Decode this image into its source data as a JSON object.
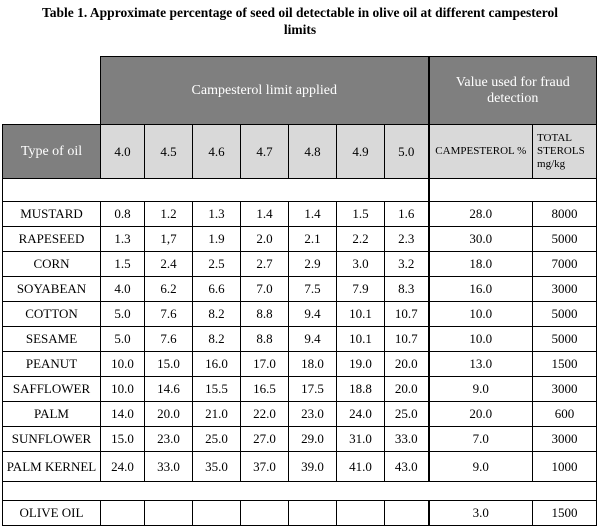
{
  "title_line1": "Table 1. Approximate percentage of seed oil detectable in olive oil at different campesterol",
  "title_line2": "limits",
  "headers": {
    "campesterol_limit_applied": "Campesterol limit applied",
    "value_used_for_fraud_detection": "Value used for fraud detection",
    "type_of_oil": "Type of oil",
    "limits": [
      "4.0",
      "4.5",
      "4.6",
      "4.7",
      "4.8",
      "4.9",
      "5.0"
    ],
    "campesterol_pct": "CAMPESTEROL %",
    "total_sterols": "TOTAL STEROLS mg/kg"
  },
  "rows": [
    {
      "name": "MUSTARD",
      "values": [
        "0.8",
        "1.2",
        "1.3",
        "1.4",
        "1.4",
        "1.5",
        "1.6"
      ],
      "campesterol": "28.0",
      "total": "8000"
    },
    {
      "name": "RAPESEED",
      "values": [
        "1.3",
        "1,7",
        "1.9",
        "2.0",
        "2.1",
        "2.2",
        "2.3"
      ],
      "campesterol": "30.0",
      "total": "5000"
    },
    {
      "name": "CORN",
      "values": [
        "1.5",
        "2.4",
        "2.5",
        "2.7",
        "2.9",
        "3.0",
        "3.2"
      ],
      "campesterol": "18.0",
      "total": "7000"
    },
    {
      "name": "SOYABEAN",
      "values": [
        "4.0",
        "6.2",
        "6.6",
        "7.0",
        "7.5",
        "7.9",
        "8.3"
      ],
      "campesterol": "16.0",
      "total": "3000"
    },
    {
      "name": "COTTON",
      "values": [
        "5.0",
        "7.6",
        "8.2",
        "8.8",
        "9.4",
        "10.1",
        "10.7"
      ],
      "campesterol": "10.0",
      "total": "5000"
    },
    {
      "name": "SESAME",
      "values": [
        "5.0",
        "7.6",
        "8.2",
        "8.8",
        "9.4",
        "10.1",
        "10.7"
      ],
      "campesterol": "10.0",
      "total": "5000"
    },
    {
      "name": "PEANUT",
      "values": [
        "10.0",
        "15.0",
        "16.0",
        "17.0",
        "18.0",
        "19.0",
        "20.0"
      ],
      "campesterol": "13.0",
      "total": "1500"
    },
    {
      "name": "SAFFLOWER",
      "values": [
        "10.0",
        "14.6",
        "15.5",
        "16.5",
        "17.5",
        "18.8",
        "20.0"
      ],
      "campesterol": "9.0",
      "total": "3000"
    },
    {
      "name": "PALM",
      "values": [
        "14.0",
        "20.0",
        "21.0",
        "22.0",
        "23.0",
        "24.0",
        "25.0"
      ],
      "campesterol": "20.0",
      "total": "600"
    },
    {
      "name": "SUNFLOWER",
      "values": [
        "15.0",
        "23.0",
        "25.0",
        "27.0",
        "29.0",
        "31.0",
        "33.0"
      ],
      "campesterol": "7.0",
      "total": "3000"
    },
    {
      "name": "PALM KERNEL",
      "values": [
        "24.0",
        "33.0",
        "35.0",
        "37.0",
        "39.0",
        "41.0",
        "43.0"
      ],
      "campesterol": "9.0",
      "total": "1000"
    }
  ],
  "olive": {
    "name": "OLIVE OIL",
    "campesterol": "3.0",
    "total": "1500"
  }
}
